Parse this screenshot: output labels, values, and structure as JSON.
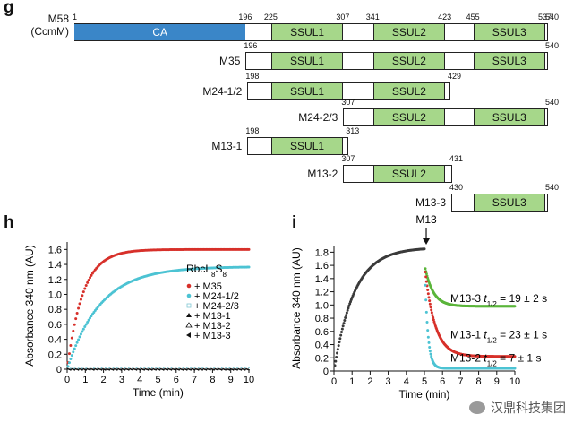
{
  "panel_g": {
    "letter": "g",
    "constructs": [
      {
        "name": "M58",
        "name2": "(CcmM)",
        "start": 1,
        "end": 540,
        "numbers": [
          "1",
          "196",
          "225",
          "307",
          "341",
          "423",
          "455",
          "537",
          "540"
        ],
        "segments": [
          {
            "label": "CA",
            "from": 1,
            "to": 196,
            "kind": "ca"
          },
          {
            "label": "SSUL1",
            "from": 225,
            "to": 307,
            "kind": "ssul"
          },
          {
            "label": "SSUL2",
            "from": 341,
            "to": 423,
            "kind": "ssul"
          },
          {
            "label": "SSUL3",
            "from": 455,
            "to": 537,
            "kind": "ssul"
          }
        ]
      },
      {
        "name": "M35",
        "start": 196,
        "end": 540,
        "numbers": [
          "196",
          "540"
        ],
        "segments": [
          {
            "label": "SSUL1",
            "from": 225,
            "to": 307,
            "kind": "ssul"
          },
          {
            "label": "SSUL2",
            "from": 341,
            "to": 423,
            "kind": "ssul"
          },
          {
            "label": "SSUL3",
            "from": 455,
            "to": 537,
            "kind": "ssul"
          }
        ]
      },
      {
        "name": "M24-1/2",
        "start": 198,
        "end": 429,
        "numbers": [
          "198",
          "429"
        ],
        "segments": [
          {
            "label": "SSUL1",
            "from": 225,
            "to": 307,
            "kind": "ssul"
          },
          {
            "label": "SSUL2",
            "from": 341,
            "to": 423,
            "kind": "ssul"
          }
        ]
      },
      {
        "name": "M24-2/3",
        "start": 307,
        "end": 540,
        "numbers": [
          "307",
          "540"
        ],
        "segments": [
          {
            "label": "SSUL2",
            "from": 341,
            "to": 423,
            "kind": "ssul"
          },
          {
            "label": "SSUL3",
            "from": 455,
            "to": 537,
            "kind": "ssul"
          }
        ]
      },
      {
        "name": "M13-1",
        "start": 198,
        "end": 313,
        "numbers": [
          "198",
          "313"
        ],
        "segments": [
          {
            "label": "SSUL1",
            "from": 225,
            "to": 307,
            "kind": "ssul"
          }
        ]
      },
      {
        "name": "M13-2",
        "start": 307,
        "end": 431,
        "numbers": [
          "307",
          "431"
        ],
        "segments": [
          {
            "label": "SSUL2",
            "from": 341,
            "to": 423,
            "kind": "ssul"
          }
        ]
      },
      {
        "name": "M13-3",
        "start": 430,
        "end": 540,
        "numbers": [
          "430",
          "540"
        ],
        "segments": [
          {
            "label": "SSUL3",
            "from": 455,
            "to": 537,
            "kind": "ssul"
          }
        ]
      }
    ]
  },
  "chart_data": [
    {
      "panel": "h",
      "type": "scatter",
      "xlabel": "Time (min)",
      "ylabel": "Absorbance 340 nm (AU)",
      "xlim": [
        0,
        10
      ],
      "ylim": [
        0,
        1.7
      ],
      "xticks": [
        "0",
        "1",
        "2",
        "3",
        "4",
        "5",
        "6",
        "7",
        "8",
        "9",
        "10"
      ],
      "yticks": [
        "0",
        "0.2",
        "0.4",
        "0.6",
        "0.8",
        "1.0",
        "1.2",
        "1.4",
        "1.6"
      ],
      "legend_title": "RbcL8S8",
      "legend_position": "center-right",
      "series": [
        {
          "name": "+ M35",
          "color": "#d7302a",
          "marker": "circle",
          "plateau": 1.6,
          "k": 1.15
        },
        {
          "name": "+ M24-1/2",
          "color": "#4cc3d3",
          "marker": "circle",
          "plateau": 1.37,
          "k": 0.55
        },
        {
          "name": "+ M24-2/3",
          "color": "#7fc7d3",
          "marker": "square-open",
          "plateau": 0.02,
          "k": 1
        },
        {
          "name": "+ M13-1",
          "color": "#111111",
          "marker": "triangle",
          "plateau": 0.01,
          "k": 1
        },
        {
          "name": "+ M13-2",
          "color": "#111111",
          "marker": "triangle-open",
          "plateau": 0.01,
          "k": 1
        },
        {
          "name": "+ M13-3",
          "color": "#111111",
          "marker": "triangle-left",
          "plateau": 0.0,
          "k": 1
        }
      ]
    },
    {
      "panel": "i",
      "type": "scatter",
      "xlabel": "Time (min)",
      "ylabel": "Absorbance 340 nm (AU)",
      "xlim": [
        0,
        10
      ],
      "ylim": [
        0,
        1.9
      ],
      "xticks": [
        "0",
        "1",
        "2",
        "3",
        "4",
        "5",
        "6",
        "7",
        "8",
        "9",
        "10"
      ],
      "yticks": [
        "0",
        "0.2",
        "0.4",
        "0.6",
        "0.8",
        "1.0",
        "1.2",
        "1.4",
        "1.6",
        "1.8"
      ],
      "arrow_label": "M13",
      "arrow_x": 5.1,
      "series": [
        {
          "name": "RbcL8S8 + M35",
          "color": "#3a3a3a",
          "phase": "association",
          "from": 0,
          "to": 5,
          "plateau": 1.9,
          "k": 0.9
        },
        {
          "name": "M13-3",
          "color": "#5ab53a",
          "phase": "dissociation",
          "start": 1.55,
          "end": 0.98,
          "half_life_s": 19
        },
        {
          "name": "M13-1",
          "color": "#d7302a",
          "phase": "dissociation",
          "start": 1.5,
          "end": 0.22,
          "half_life_s": 23
        },
        {
          "name": "M13-2",
          "color": "#4cc3d3",
          "phase": "dissociation",
          "start": 1.3,
          "end": 0.04,
          "half_life_s": 7
        }
      ],
      "annotations": [
        {
          "series": "M13-3",
          "prefix": "M13-3 ",
          "t": "t",
          "sub": "1/2",
          "value": " = 19 ± 2 s",
          "y": 1.1
        },
        {
          "series": "M13-1",
          "prefix": "M13-1 ",
          "t": "t",
          "sub": "1/2",
          "value": " = 23 ± 1 s",
          "y": 0.55
        },
        {
          "series": "M13-2",
          "prefix": "M13-2 ",
          "t": "t",
          "sub": "1/2",
          "value": " = 7 ± 1 s",
          "y": 0.2
        }
      ]
    }
  ],
  "panel_letters": {
    "g": "g",
    "h": "h",
    "i": "i"
  },
  "legend_h": {
    "title_main": "RbcL",
    "sub1": "8",
    "mid": "S",
    "sub2": "8"
  },
  "watermark": {
    "text": "汉鼎科技集团"
  }
}
